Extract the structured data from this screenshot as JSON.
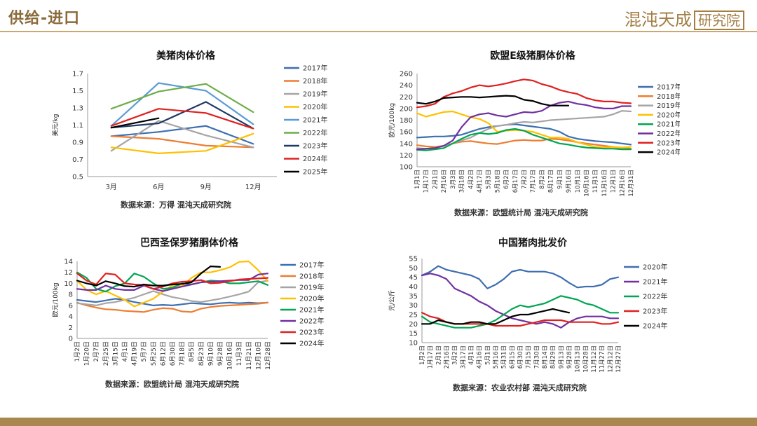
{
  "header": {
    "title": "供给-进口",
    "logo_main": "混沌天成",
    "logo_boxed": "研究院"
  },
  "colors": {
    "2017年": "#3e6fb0",
    "2018年": "#ed7d31",
    "2019年": "#a5a5a5",
    "2020年": "#ffc000",
    "2021年": "#5b9bd5",
    "2022年": "#70ad47",
    "2023年": "#203864",
    "2024年": "#000000",
    "2025年": "#000000"
  },
  "chart_data": [
    {
      "id": "us",
      "type": "line",
      "title": "美猪肉体价格",
      "ylabel": "美元/kg",
      "source": "数据来源：万得 混沌天成研究院",
      "categories": [
        "3月",
        "6月",
        "9月",
        "12月"
      ],
      "yticks": [
        "1.7",
        "1.5",
        "1.3",
        "1.1",
        "0.9",
        "0.7",
        "0.5"
      ],
      "ylim": [
        0.5,
        1.7
      ],
      "series": [
        {
          "name": "2017年",
          "color": "#3e6fb0",
          "values": [
            0.97,
            1.02,
            1.09,
            0.88
          ]
        },
        {
          "name": "2018年",
          "color": "#ed7d31",
          "values": [
            0.97,
            0.94,
            0.86,
            0.84
          ]
        },
        {
          "name": "2019年",
          "color": "#a5a5a5",
          "values": [
            0.8,
            1.15,
            0.98,
            0.84
          ]
        },
        {
          "name": "2020年",
          "color": "#ffc000",
          "values": [
            0.84,
            0.77,
            0.8,
            1.0
          ]
        },
        {
          "name": "2021年",
          "color": "#5b9bd5",
          "values": [
            1.09,
            1.59,
            1.5,
            1.11
          ]
        },
        {
          "name": "2022年",
          "color": "#70ad47",
          "values": [
            1.29,
            1.49,
            1.58,
            1.25
          ]
        },
        {
          "name": "2023年",
          "color": "#203864",
          "values": [
            1.07,
            1.12,
            1.37,
            1.06
          ]
        },
        {
          "name": "2024年",
          "color": "#e02020",
          "values": [
            1.09,
            1.29,
            1.24,
            1.06
          ]
        },
        {
          "name": "2025年",
          "color": "#000000",
          "values": [
            1.07,
            1.18,
            null,
            null
          ]
        }
      ]
    },
    {
      "id": "eu",
      "type": "line",
      "title": "欧盟E级猪胴体价格",
      "ylabel": "欧元/100kg",
      "source": "数据来源：欧盟统计局 混沌天成研究院",
      "categories": [
        "1月1日",
        "1月17日",
        "2月1日",
        "2月16日",
        "3月3日",
        "3月18日",
        "4月2日",
        "4月17日",
        "5月3日",
        "5月18日",
        "6月2日",
        "6月17日",
        "7月2日",
        "7月17日",
        "8月2日",
        "8月17日",
        "9月1日",
        "9月16日",
        "10月1日",
        "10月16日",
        "11月1日",
        "11月16日",
        "12月1日",
        "12月16日",
        "12月31日"
      ],
      "yticks": [
        "260",
        "240",
        "220",
        "200",
        "180",
        "160",
        "140",
        "120",
        "100"
      ],
      "ylim": [
        100,
        260
      ],
      "series": [
        {
          "name": "2017年",
          "color": "#3e6fb0",
          "values": [
            150,
            151,
            152,
            152,
            153,
            155,
            160,
            165,
            168,
            170,
            172,
            173,
            171,
            169,
            167,
            165,
            160,
            152,
            148,
            146,
            144,
            143,
            142,
            140,
            138
          ]
        },
        {
          "name": "2018年",
          "color": "#ed7d31",
          "values": [
            137,
            135,
            134,
            136,
            140,
            143,
            144,
            142,
            140,
            139,
            142,
            145,
            146,
            145,
            145,
            148,
            147,
            145,
            142,
            140,
            138,
            136,
            134,
            132,
            131
          ]
        },
        {
          "name": "2019年",
          "color": "#a5a5a5",
          "values": [
            132,
            131,
            132,
            136,
            140,
            145,
            150,
            158,
            165,
            170,
            172,
            175,
            177,
            176,
            178,
            180,
            181,
            182,
            183,
            184,
            185,
            186,
            190,
            196,
            195
          ]
        },
        {
          "name": "2020年",
          "color": "#ffc000",
          "values": [
            192,
            186,
            190,
            194,
            195,
            190,
            185,
            182,
            175,
            160,
            162,
            163,
            162,
            160,
            155,
            150,
            150,
            148,
            142,
            138,
            134,
            133,
            134,
            133,
            134
          ]
        },
        {
          "name": "2021年",
          "color": "#00a651",
          "values": [
            129,
            128,
            130,
            132,
            140,
            148,
            155,
            158,
            156,
            158,
            163,
            165,
            162,
            155,
            150,
            145,
            140,
            138,
            135,
            133,
            132,
            131,
            131,
            130,
            130
          ]
        },
        {
          "name": "2022年",
          "color": "#7030a0",
          "values": [
            130,
            131,
            132,
            136,
            145,
            168,
            185,
            190,
            192,
            188,
            186,
            190,
            194,
            193,
            196,
            205,
            210,
            212,
            208,
            206,
            202,
            200,
            200,
            204,
            204
          ]
        },
        {
          "name": "2023年",
          "color": "#e02020",
          "values": [
            202,
            204,
            208,
            220,
            226,
            230,
            236,
            240,
            238,
            240,
            243,
            247,
            250,
            248,
            242,
            238,
            232,
            228,
            225,
            218,
            214,
            212,
            212,
            210,
            209
          ]
        },
        {
          "name": "2024年",
          "color": "#000000",
          "values": [
            210,
            208,
            212,
            218,
            219,
            220,
            220,
            219,
            220,
            221,
            222,
            221,
            215,
            213,
            208,
            205,
            205,
            205,
            null,
            null,
            null,
            null,
            null,
            null,
            null
          ]
        }
      ]
    },
    {
      "id": "br",
      "type": "line",
      "title": "巴西圣保罗猪胴体价格",
      "ylabel": "欧元/100kg",
      "source": "数据来源：欧盟统计局 混沌天成研究院",
      "categories": [
        "1月2日",
        "1月20日",
        "2月7日",
        "2月25日",
        "3月15日",
        "4月1日",
        "4月19日",
        "5月7日",
        "5月25日",
        "6月12日",
        "6月30日",
        "7月18日",
        "8月5日",
        "8月23日",
        "9月10日",
        "9月28日",
        "10月16日",
        "11月3日",
        "11月21日",
        "12月10日",
        "12月28日"
      ],
      "yticks": [
        "14",
        "12",
        "10",
        "8",
        "6",
        "4",
        "2",
        "0"
      ],
      "ylim": [
        0,
        14
      ],
      "series": [
        {
          "name": "2017年",
          "color": "#3e6fb0",
          "values": [
            7,
            6.8,
            6.6,
            6.9,
            7.2,
            7.0,
            6.6,
            6.3,
            6.0,
            6.1,
            6.0,
            6.2,
            6.4,
            6.3,
            6.2,
            6.4,
            6.5,
            6.4,
            6.5,
            6.4,
            6.5
          ]
        },
        {
          "name": "2018年",
          "color": "#ed7d31",
          "values": [
            6.5,
            6.0,
            5.6,
            5.3,
            5.2,
            5.0,
            4.9,
            4.8,
            5.2,
            5.5,
            5.4,
            4.9,
            4.8,
            5.4,
            5.7,
            5.9,
            6.0,
            6.1,
            6.2,
            6.3,
            6.5
          ]
        },
        {
          "name": "2019年",
          "color": "#a5a5a5",
          "values": [
            6.4,
            6.2,
            6.0,
            6.4,
            6.6,
            7.0,
            7.4,
            8.0,
            8.6,
            8.0,
            7.5,
            7.2,
            6.8,
            6.6,
            6.9,
            7.2,
            7.6,
            8.0,
            8.5,
            10.2,
            10.5
          ]
        },
        {
          "name": "2020年",
          "color": "#ffc000",
          "values": [
            10.5,
            8.8,
            8.0,
            8.6,
            7.8,
            7.0,
            5.8,
            6.5,
            7.2,
            8.5,
            9.6,
            9.5,
            11.0,
            12.0,
            12.0,
            12.4,
            12.9,
            13.9,
            14.0,
            12.4,
            10.4
          ]
        },
        {
          "name": "2021年",
          "color": "#00a651",
          "values": [
            12,
            11.0,
            9.0,
            8.5,
            9.5,
            10.0,
            11.8,
            11.2,
            10.0,
            9.0,
            9.2,
            10.0,
            9.8,
            10.2,
            10.5,
            10.4,
            10.0,
            10.0,
            10.2,
            10.4,
            9.7
          ]
        },
        {
          "name": "2022年",
          "color": "#7030a0",
          "values": [
            9.0,
            8.8,
            8.8,
            9.6,
            9.0,
            8.8,
            8.8,
            9.6,
            9.0,
            8.6,
            9.0,
            9.4,
            9.8,
            10.2,
            10.3,
            10.4,
            10.5,
            10.6,
            10.6,
            11.6,
            11.8
          ]
        },
        {
          "name": "2023年",
          "color": "#e02020",
          "values": [
            11.8,
            10.5,
            9.8,
            11.8,
            11.6,
            10.0,
            9.8,
            9.7,
            9.0,
            9.4,
            10.0,
            10.3,
            10.4,
            10.6,
            10.0,
            10.1,
            10.4,
            10.7,
            10.8,
            10.9,
            11.0
          ]
        },
        {
          "name": "2024年",
          "color": "#000000",
          "values": [
            10.5,
            10.0,
            9.6,
            10.4,
            10.0,
            9.5,
            9.4,
            9.8,
            9.6,
            9.6,
            9.8,
            9.9,
            10.2,
            11.8,
            13.1,
            13.0,
            null,
            null,
            null,
            null,
            null
          ]
        }
      ]
    },
    {
      "id": "cn",
      "type": "line",
      "title": "中国猪肉批发价",
      "ylabel": "元/公斤",
      "source": "数据来源：农业农村部 混沌天成研究院",
      "categories": [
        "1月2日",
        "1月17日",
        "2月1日",
        "2月16日",
        "3月2日",
        "3月17日",
        "4月1日",
        "4月16日",
        "5月1日",
        "5月16日",
        "5月31日",
        "6月15日",
        "6月30日",
        "7月15日",
        "7月30日",
        "8月14日",
        "8月29日",
        "9月13日",
        "9月28日",
        "10月13日",
        "10月28日",
        "11月12日",
        "11月27日",
        "12月12日",
        "12月27日"
      ],
      "yticks": [
        "55",
        "50",
        "45",
        "40",
        "35",
        "30",
        "25",
        "20",
        "15",
        "10"
      ],
      "ylim": [
        10,
        55
      ],
      "series": [
        {
          "name": "2020年",
          "color": "#3e6fb0",
          "values": [
            46,
            48,
            51,
            49,
            48,
            47,
            46,
            44,
            39,
            41,
            44,
            48,
            49,
            48,
            48,
            48,
            47,
            45,
            42,
            39.5,
            40,
            40,
            41,
            44,
            45
          ]
        },
        {
          "name": "2021年",
          "color": "#7030a0",
          "values": [
            46,
            47,
            46,
            44,
            39,
            37,
            35,
            32,
            30,
            27,
            25,
            23,
            22,
            21,
            20,
            21,
            20,
            18,
            21,
            23,
            24,
            24,
            24,
            23,
            23
          ]
        },
        {
          "name": "2022年",
          "color": "#00a651",
          "values": [
            24,
            21,
            20,
            19,
            18,
            18,
            18,
            19,
            20,
            22,
            25,
            28,
            30,
            29,
            30,
            31,
            33,
            35,
            34,
            33,
            31,
            30,
            28,
            26,
            26
          ]
        },
        {
          "name": "2023年",
          "color": "#e02020",
          "values": [
            26,
            24,
            23,
            21,
            20,
            20,
            20,
            20,
            20,
            19,
            19,
            19,
            19,
            20,
            21,
            22,
            22,
            22,
            21,
            21,
            21,
            21,
            20,
            20,
            21
          ]
        },
        {
          "name": "2024年",
          "color": "#000000",
          "values": [
            20,
            20,
            22,
            21,
            20,
            20,
            21,
            21,
            20,
            20,
            22,
            24,
            25,
            25,
            26,
            27,
            28,
            27,
            26,
            null,
            null,
            null,
            null,
            null,
            null
          ]
        }
      ]
    }
  ]
}
